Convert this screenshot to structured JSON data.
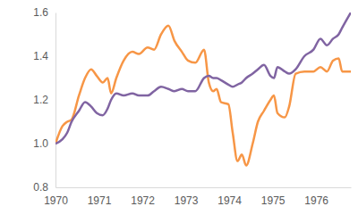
{
  "chart_data": {
    "type": "line",
    "x": [
      1970.0,
      1970.16,
      1970.27,
      1970.37,
      1970.54,
      1970.68,
      1970.82,
      1970.95,
      1971.09,
      1971.2,
      1971.28,
      1971.4,
      1971.57,
      1971.77,
      1971.92,
      1972.12,
      1972.27,
      1972.43,
      1972.6,
      1972.74,
      1972.91,
      1973.05,
      1973.22,
      1973.42,
      1973.53,
      1973.63,
      1973.71,
      1973.81,
      1973.98,
      1974.08,
      1974.19,
      1974.29,
      1974.39,
      1974.54,
      1974.66,
      1974.8,
      1974.95,
      1975.03,
      1975.11,
      1975.28,
      1975.38,
      1975.53,
      1975.73,
      1975.94,
      1976.1,
      1976.25,
      1976.39,
      1976.52,
      1976.6,
      1976.8
    ],
    "series": [
      {
        "color": "#F79646",
        "values": [
          1.0,
          1.08,
          1.1,
          1.11,
          1.22,
          1.3,
          1.34,
          1.31,
          1.28,
          1.3,
          1.23,
          1.3,
          1.38,
          1.42,
          1.41,
          1.44,
          1.43,
          1.5,
          1.54,
          1.47,
          1.42,
          1.38,
          1.37,
          1.43,
          1.28,
          1.24,
          1.25,
          1.19,
          1.18,
          1.05,
          0.92,
          0.95,
          0.9,
          1.0,
          1.1,
          1.15,
          1.2,
          1.22,
          1.14,
          1.12,
          1.17,
          1.32,
          1.33,
          1.33,
          1.35,
          1.33,
          1.38,
          1.39,
          1.33,
          1.33
        ]
      },
      {
        "color": "#8064A2",
        "values": [
          1.0,
          1.02,
          1.05,
          1.1,
          1.15,
          1.19,
          1.17,
          1.14,
          1.13,
          1.16,
          1.2,
          1.23,
          1.22,
          1.23,
          1.22,
          1.22,
          1.24,
          1.26,
          1.25,
          1.24,
          1.25,
          1.24,
          1.24,
          1.3,
          1.31,
          1.3,
          1.3,
          1.29,
          1.27,
          1.26,
          1.27,
          1.28,
          1.3,
          1.32,
          1.34,
          1.36,
          1.31,
          1.3,
          1.35,
          1.33,
          1.32,
          1.34,
          1.4,
          1.43,
          1.48,
          1.45,
          1.48,
          1.5,
          1.53,
          1.6
        ]
      }
    ],
    "xlim": [
      1970,
      1976.8
    ],
    "xticks": [
      1970,
      1971,
      1972,
      1973,
      1974,
      1975,
      1976
    ],
    "ylim": [
      0.8,
      1.6
    ],
    "yticks": [
      0.8,
      {
        "value": 1,
        "label": "1.0"
      },
      1.2,
      1.4,
      1.6
    ]
  }
}
